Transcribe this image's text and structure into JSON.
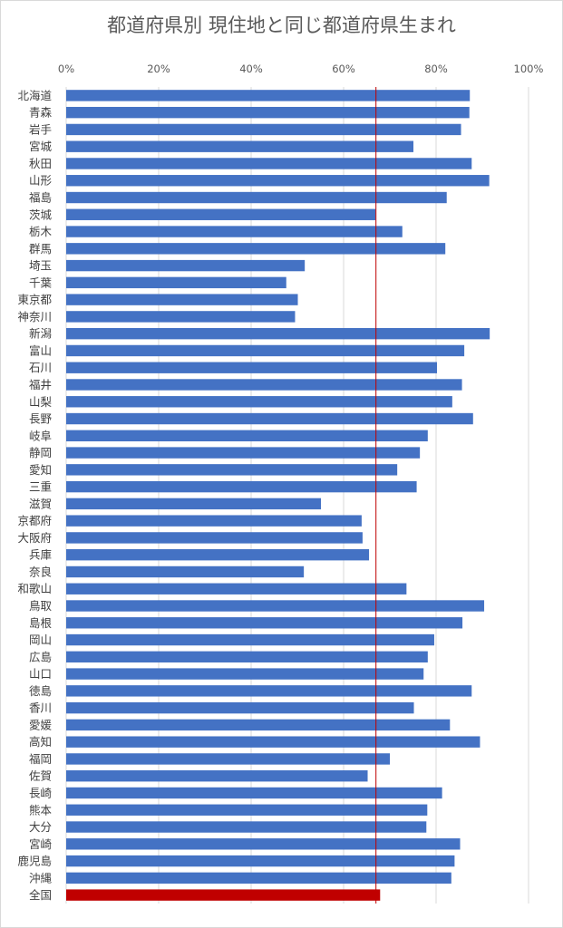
{
  "chart_data": {
    "type": "bar",
    "orientation": "horizontal",
    "title": "都道府県別 現住地と同じ都道府県生まれ",
    "xlim": [
      0,
      1
    ],
    "xticks": [
      "0%",
      "20%",
      "40%",
      "60%",
      "80%",
      "100%"
    ],
    "x_axis_position": "top",
    "grid": true,
    "reference_line": {
      "value": 0.67,
      "color": "#c00000"
    },
    "bar_color": "#4472c4",
    "highlight_color": "#c00000",
    "categories": [
      "北海道",
      "青森",
      "岩手",
      "宮城",
      "秋田",
      "山形",
      "福島",
      "茨城",
      "栃木",
      "群馬",
      "埼玉",
      "千葉",
      "東京都",
      "神奈川",
      "新潟",
      "富山",
      "石川",
      "福井",
      "山梨",
      "長野",
      "岐阜",
      "静岡",
      "愛知",
      "三重",
      "滋賀",
      "京都府",
      "大阪府",
      "兵庫",
      "奈良",
      "和歌山",
      "鳥取",
      "島根",
      "岡山",
      "広島",
      "山口",
      "徳島",
      "香川",
      "愛媛",
      "高知",
      "福岡",
      "佐賀",
      "長崎",
      "熊本",
      "大分",
      "宮崎",
      "鹿児島",
      "沖縄",
      "全国"
    ],
    "values": [
      0.873,
      0.872,
      0.854,
      0.751,
      0.877,
      0.915,
      0.823,
      0.669,
      0.727,
      0.82,
      0.516,
      0.476,
      0.501,
      0.495,
      0.916,
      0.861,
      0.802,
      0.856,
      0.835,
      0.88,
      0.782,
      0.765,
      0.716,
      0.758,
      0.551,
      0.639,
      0.641,
      0.655,
      0.514,
      0.736,
      0.904,
      0.857,
      0.796,
      0.782,
      0.773,
      0.877,
      0.752,
      0.83,
      0.895,
      0.7,
      0.652,
      0.813,
      0.781,
      0.779,
      0.852,
      0.84,
      0.833,
      0.679
    ],
    "highlight_index": 47
  }
}
